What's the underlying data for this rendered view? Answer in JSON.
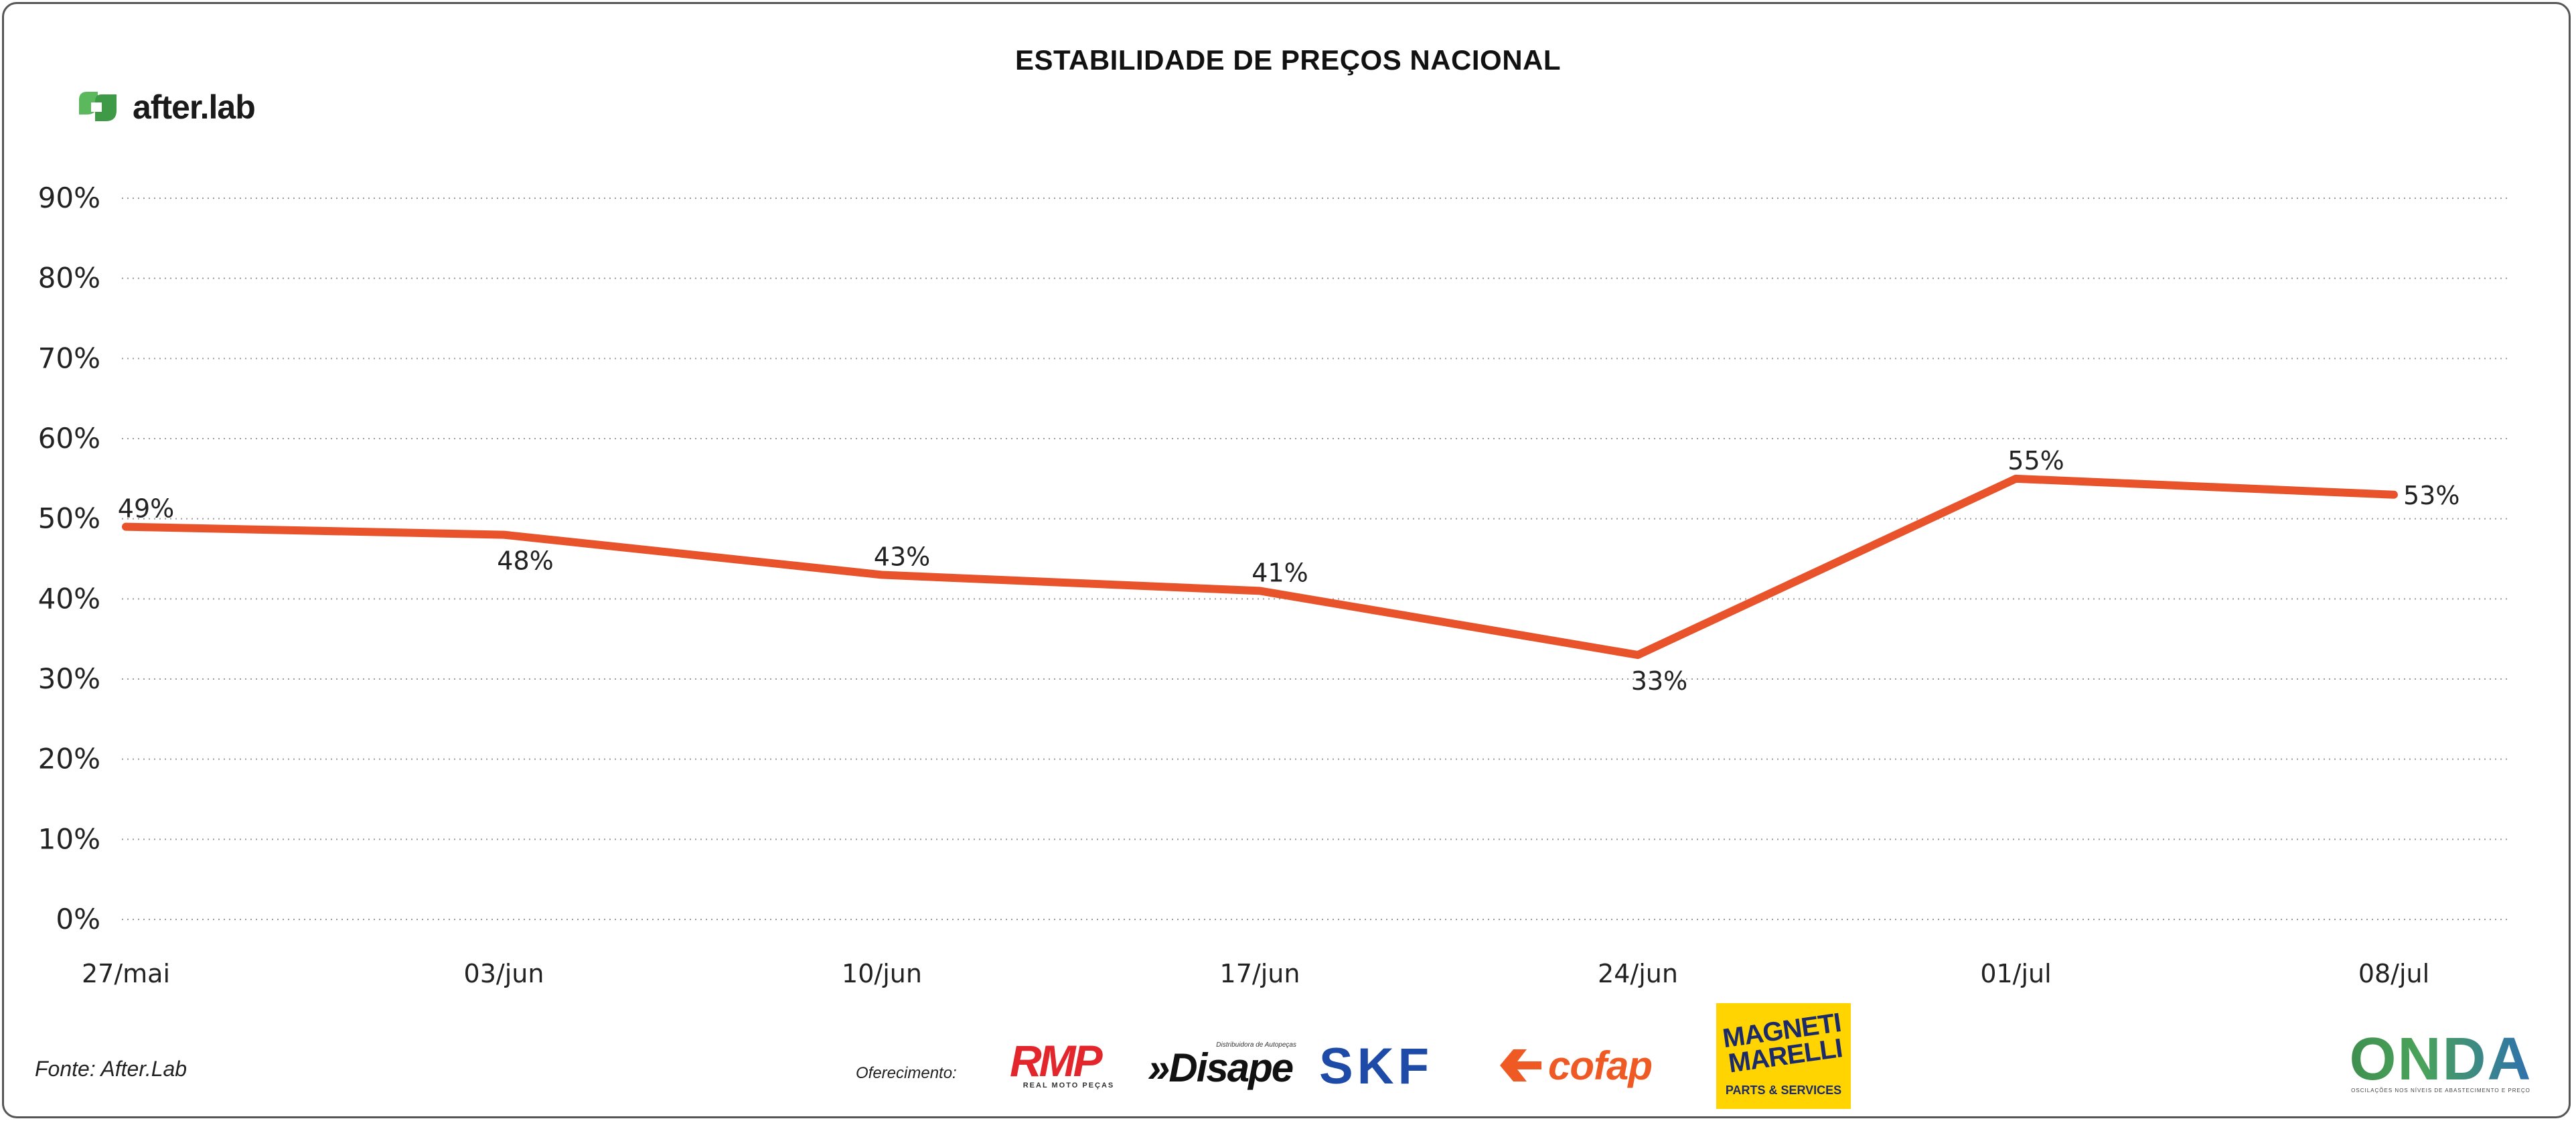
{
  "chart_data": {
    "type": "line",
    "title": "ESTABILIDADE DE PREÇOS NACIONAL",
    "categories": [
      "27/mai",
      "03/jun",
      "10/jun",
      "17/jun",
      "24/jun",
      "01/jul",
      "08/jul"
    ],
    "series": [
      {
        "values": [
          49,
          48,
          43,
          41,
          33,
          55,
          53
        ],
        "data_labels": [
          "49%",
          "48%",
          "43%",
          "41%",
          "33%",
          "55%",
          "53%"
        ],
        "color": "#e8532b"
      }
    ],
    "ylim": [
      0,
      90
    ],
    "yticks": [
      0,
      10,
      20,
      30,
      40,
      50,
      60,
      70,
      80,
      90
    ],
    "ytick_labels": [
      "0%",
      "10%",
      "20%",
      "30%",
      "40%",
      "50%",
      "60%",
      "70%",
      "80%",
      "90%"
    ],
    "grid": "horizontal dotted",
    "xlabel": "",
    "ylabel": ""
  },
  "brand": {
    "name": "after.lab",
    "icon": "leaf-icon",
    "color": "#5cb85c"
  },
  "footer": {
    "source": "Fonte: After.Lab",
    "sponsor_label": "Oferecimento:",
    "sponsors": {
      "rmp": {
        "name": "RMP",
        "tagline": "REAL MOTO PEÇAS"
      },
      "disape": {
        "name": "Disape",
        "tagline": "Distribuidora de Autopeças"
      },
      "skf": {
        "name": "SKF"
      },
      "cofap": {
        "name": "cofap"
      },
      "magneti": {
        "name": "MAGNETI MARELLI",
        "tagline": "PARTS & SERVICES"
      },
      "onda": {
        "name": "ONDA",
        "tagline": "OSCILAÇÕES NOS NÍVEIS DE ABASTECIMENTO E PREÇO"
      }
    }
  }
}
